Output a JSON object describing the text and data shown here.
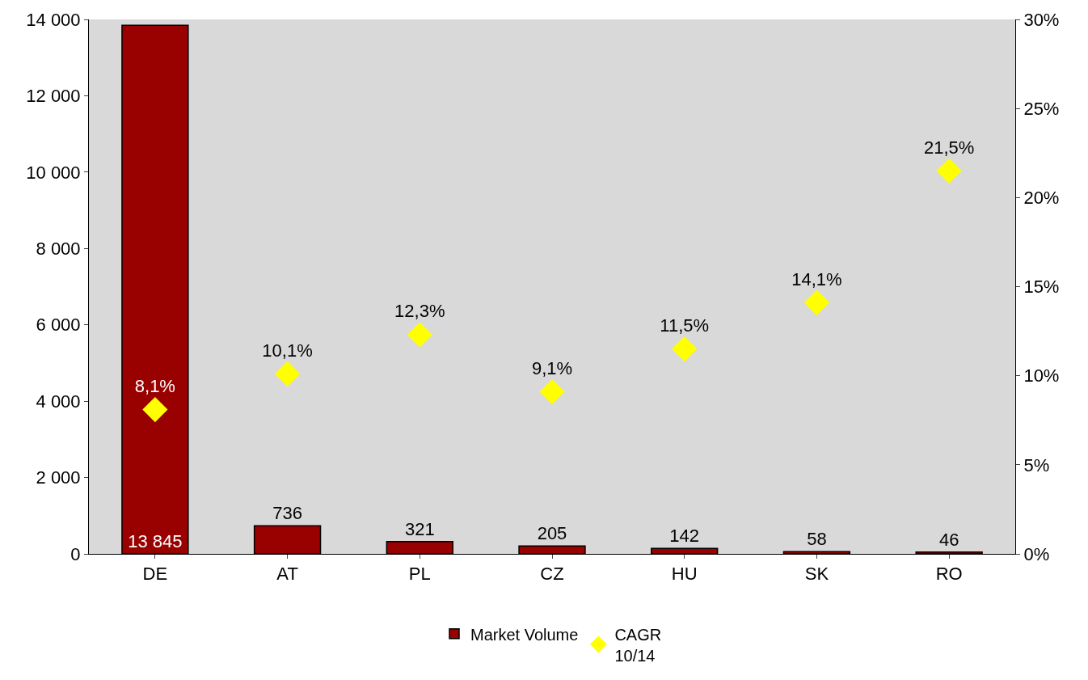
{
  "chart_data": {
    "type": "bar",
    "categories": [
      "DE",
      "AT",
      "PL",
      "CZ",
      "HU",
      "SK",
      "RO"
    ],
    "series": [
      {
        "name": "Market Volume",
        "color": "#990000",
        "values": [
          13845,
          736,
          321,
          205,
          142,
          58,
          46
        ],
        "value_labels": [
          "13 845",
          "736",
          "321",
          "205",
          "142",
          "58",
          "46"
        ]
      },
      {
        "name": "CAGR\n10/14",
        "type": "scatter",
        "axis": "y2",
        "color": "#ffff00",
        "marker": "diamond",
        "values": [
          8.1,
          10.1,
          12.3,
          9.1,
          11.5,
          14.1,
          21.5
        ],
        "value_labels": [
          "8,1%",
          "10,1%",
          "12,3%",
          "9,1%",
          "11,5%",
          "14,1%",
          "21,5%"
        ]
      }
    ],
    "ylim": [
      0,
      14000
    ],
    "yticks": [
      0,
      {
        "value": 2000,
        "label": "2 000"
      },
      {
        "value": 4000,
        "label": "4 000"
      },
      {
        "value": 6000,
        "label": "6 000"
      },
      {
        "value": 8000,
        "label": "8 000"
      },
      {
        "value": 10000,
        "label": "10 000"
      },
      {
        "value": 12000,
        "label": "12 000"
      },
      {
        "value": 14000,
        "label": "14 000"
      }
    ],
    "y2lim": [
      0,
      30
    ],
    "y2ticks": [
      {
        "value": 0,
        "label": "0%"
      },
      {
        "value": 5,
        "label": "5%"
      },
      {
        "value": 10,
        "label": "10%"
      },
      {
        "value": 15,
        "label": "15%"
      },
      {
        "value": 20,
        "label": "20%"
      },
      {
        "value": 25,
        "label": "25%"
      },
      {
        "value": 30,
        "label": "30%"
      }
    ],
    "grid": false,
    "legend": "bottom"
  }
}
